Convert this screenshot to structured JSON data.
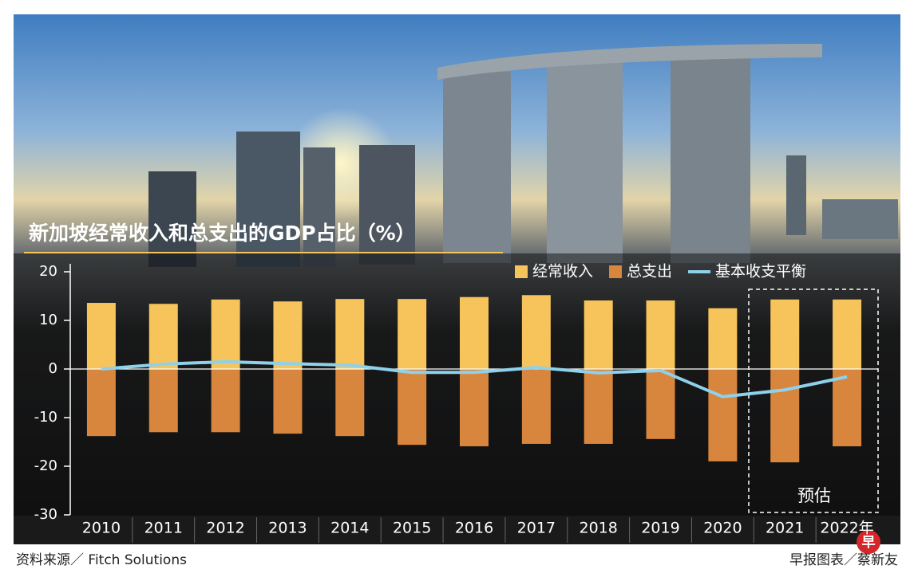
{
  "chart_data": {
    "type": "bar",
    "title": "新加坡经常收入和总支出的GDP占比（%）",
    "categories": [
      "2010",
      "2011",
      "2012",
      "2013",
      "2014",
      "2015",
      "2016",
      "2017",
      "2018",
      "2019",
      "2020",
      "2021",
      "2022年"
    ],
    "series": [
      {
        "name": "经常收入",
        "color": "#f6c45a",
        "values": [
          13.6,
          13.4,
          14.3,
          13.9,
          14.4,
          14.4,
          14.8,
          15.2,
          14.1,
          14.1,
          12.5,
          14.3,
          14.3
        ]
      },
      {
        "name": "总支出",
        "color": "#d8853e",
        "values": [
          -13.8,
          -13.0,
          -13.0,
          -13.3,
          -13.8,
          -15.6,
          -15.9,
          -15.4,
          -15.4,
          -14.4,
          -19.0,
          -19.2,
          -15.9
        ]
      },
      {
        "name": "基本收支平衡",
        "type": "line",
        "color": "#8fd0ea",
        "values": [
          0,
          1.0,
          1.5,
          1.1,
          0.8,
          -0.7,
          -0.7,
          0.3,
          -0.8,
          -0.3,
          -5.7,
          -4.3,
          -1.6
        ]
      }
    ],
    "ylim": [
      -30,
      20
    ],
    "yticks": [
      20,
      10,
      0,
      -10,
      -20,
      -30
    ],
    "annotation": "预估",
    "source": "资料来源／ Fitch Solutions",
    "credit": "早报图表／蔡新友",
    "logo": "早"
  }
}
